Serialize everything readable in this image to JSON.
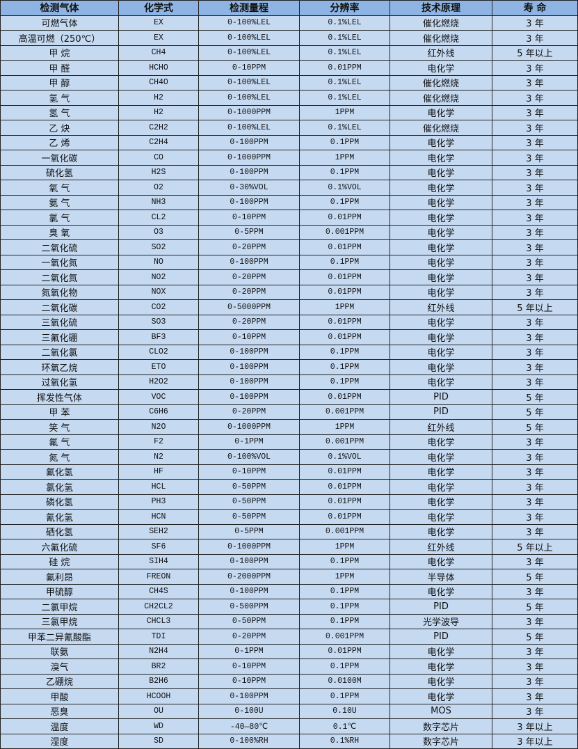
{
  "table": {
    "headers": [
      "检测气体",
      "化学式",
      "检测量程",
      "分辨率",
      "技术原理",
      "寿 命"
    ],
    "rows": [
      [
        "可燃气体",
        "EX",
        "0-100%LEL",
        "0.1%LEL",
        "催化燃烧",
        "3 年"
      ],
      [
        "高温可燃（250℃）",
        "EX",
        "0-100%LEL",
        "0.1%LEL",
        "催化燃烧",
        "3 年"
      ],
      [
        "甲 烷",
        "CH4",
        "0-100%LEL",
        "0.1%LEL",
        "红外线",
        "5 年以上"
      ],
      [
        "甲 醛",
        "HCHO",
        "0-10PPM",
        "0.01PPM",
        "电化学",
        "3 年"
      ],
      [
        "甲 醇",
        "CH4O",
        "0-100%LEL",
        "0.1%LEL",
        "催化燃烧",
        "3 年"
      ],
      [
        "氢 气",
        "H2",
        "0-100%LEL",
        "0.1%LEL",
        "催化燃烧",
        "3 年"
      ],
      [
        "氢 气",
        "H2",
        "0-1000PPM",
        "1PPM",
        "电化学",
        "3 年"
      ],
      [
        "乙 炔",
        "C2H2",
        "0-100%LEL",
        "0.1%LEL",
        "催化燃烧",
        "3 年"
      ],
      [
        "乙 烯",
        "C2H4",
        "0-100PPM",
        "0.1PPM",
        "电化学",
        "3 年"
      ],
      [
        "一氧化碳",
        "CO",
        "0-1000PPM",
        "1PPM",
        "电化学",
        "3 年"
      ],
      [
        "硫化氢",
        "H2S",
        "0-100PPM",
        "0.1PPM",
        "电化学",
        "3 年"
      ],
      [
        "氧 气",
        "O2",
        "0-30%VOL",
        "0.1%VOL",
        "电化学",
        "3 年"
      ],
      [
        "氨 气",
        "NH3",
        "0-100PPM",
        "0.1PPM",
        "电化学",
        "3 年"
      ],
      [
        "氯 气",
        "CL2",
        "0-10PPM",
        "0.01PPM",
        "电化学",
        "3 年"
      ],
      [
        "臭 氧",
        "O3",
        "0-5PPM",
        "0.001PPM",
        "电化学",
        "3 年"
      ],
      [
        "二氧化硫",
        "SO2",
        "0-20PPM",
        "0.01PPM",
        "电化学",
        "3 年"
      ],
      [
        "一氧化氮",
        "NO",
        "0-100PPM",
        "0.1PPM",
        "电化学",
        "3 年"
      ],
      [
        "二氧化氮",
        "NO2",
        "0-20PPM",
        "0.01PPM",
        "电化学",
        "3 年"
      ],
      [
        "氮氧化物",
        "NOX",
        "0-20PPM",
        "0.01PPM",
        "电化学",
        "3 年"
      ],
      [
        "二氧化碳",
        "CO2",
        "0-5000PPM",
        "1PPM",
        "红外线",
        "5 年以上"
      ],
      [
        "三氧化硫",
        "SO3",
        "0-20PPM",
        "0.01PPM",
        "电化学",
        "3 年"
      ],
      [
        "三氟化硼",
        "BF3",
        "0-10PPM",
        "0.01PPM",
        "电化学",
        "3 年"
      ],
      [
        "二氧化氯",
        "CLO2",
        "0-100PPM",
        "0.1PPM",
        "电化学",
        "3 年"
      ],
      [
        "环氧乙烷",
        "ETO",
        "0-100PPM",
        "0.1PPM",
        "电化学",
        "3 年"
      ],
      [
        "过氧化氢",
        "H2O2",
        "0-100PPM",
        "0.1PPM",
        "电化学",
        "3 年"
      ],
      [
        "挥发性气体",
        "VOC",
        "0-100PPM",
        "0.01PPM",
        "PID",
        "5 年"
      ],
      [
        "甲 苯",
        "C6H6",
        "0-20PPM",
        "0.001PPM",
        "PID",
        "5 年"
      ],
      [
        "笑 气",
        "N2O",
        "0-1000PPM",
        "1PPM",
        "红外线",
        "5 年"
      ],
      [
        "氟 气",
        "F2",
        "0-1PPM",
        "0.001PPM",
        "电化学",
        "3 年"
      ],
      [
        "氮 气",
        "N2",
        "0-100%VOL",
        "0.1%VOL",
        "电化学",
        "3 年"
      ],
      [
        "氟化氢",
        "HF",
        "0-10PPM",
        "0.01PPM",
        "电化学",
        "3 年"
      ],
      [
        "氯化氢",
        "HCL",
        "0-50PPM",
        "0.01PPM",
        "电化学",
        "3 年"
      ],
      [
        "磷化氢",
        "PH3",
        "0-50PPM",
        "0.01PPM",
        "电化学",
        "3 年"
      ],
      [
        "氰化氢",
        "HCN",
        "0-50PPM",
        "0.01PPM",
        "电化学",
        "3 年"
      ],
      [
        "硒化氢",
        "SEH2",
        "0-5PPM",
        "0.001PPM",
        "电化学",
        "3 年"
      ],
      [
        "六氟化硫",
        "SF6",
        "0-1000PPM",
        "1PPM",
        "红外线",
        "5 年以上"
      ],
      [
        "硅 烷",
        "SIH4",
        "0-100PPM",
        "0.1PPM",
        "电化学",
        "3 年"
      ],
      [
        "氟利昂",
        "FREON",
        "0-2000PPM",
        "1PPM",
        "半导体",
        "5 年"
      ],
      [
        "甲硫醇",
        "CH4S",
        "0-100PPM",
        "0.1PPM",
        "电化学",
        "3 年"
      ],
      [
        "二氯甲烷",
        "CH2CL2",
        "0-500PPM",
        "0.1PPM",
        "PID",
        "5 年"
      ],
      [
        "三氯甲烷",
        "CHCL3",
        "0-50PPM",
        "0.1PPM",
        "光学波导",
        "3 年"
      ],
      [
        "甲苯二异氰酸酯",
        "TDI",
        "0-20PPM",
        "0.001PPM",
        "PID",
        "5 年"
      ],
      [
        "联氨",
        "N2H4",
        "0-1PPM",
        "0.01PPM",
        "电化学",
        "3 年"
      ],
      [
        "溴气",
        "BR2",
        "0-10PPM",
        "0.1PPM",
        "电化学",
        "3 年"
      ],
      [
        "乙硼烷",
        "B2H6",
        "0-10PPM",
        "0.0100M",
        "电化学",
        "3 年"
      ],
      [
        "甲酸",
        "HCOOH",
        "0-100PPM",
        "0.1PPM",
        "电化学",
        "3 年"
      ],
      [
        "恶臭",
        "OU",
        "0-100U",
        "0.10U",
        "MOS",
        "3 年"
      ],
      [
        "温度",
        "WD",
        "-40—80℃",
        "0.1℃",
        "数字芯片",
        "3 年以上"
      ],
      [
        "湿度",
        "SD",
        "0-100%RH",
        "0.1%RH",
        "数字芯片",
        "3 年以上"
      ]
    ]
  },
  "colors": {
    "header_bg": "#8db4e2",
    "row_bg": "#c5d9f1",
    "border": "#222222"
  }
}
